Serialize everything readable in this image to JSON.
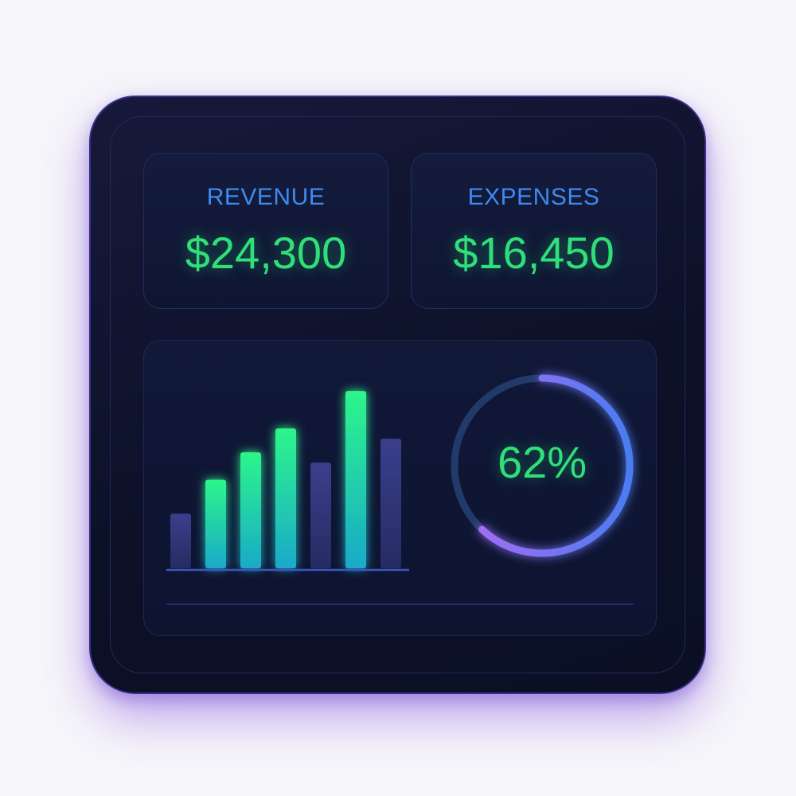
{
  "colors": {
    "label": "#3d8af0",
    "value": "#2fe07a",
    "ring_bg": "#243a6e",
    "ring_purple": "#a35cf0",
    "ring_blue": "#4a7cf0",
    "bar_dim": "#333a7a"
  },
  "revenue": {
    "label": "REVENUE",
    "value": "$24,300"
  },
  "expenses": {
    "label": "EXPENSES",
    "value": "$16,450"
  },
  "progress": {
    "label": "62%",
    "fraction": 0.62
  },
  "chart_data": {
    "type": "bar",
    "values": [
      16,
      26,
      34,
      41,
      31,
      52,
      38
    ],
    "highlight": [
      false,
      true,
      true,
      true,
      false,
      true,
      false
    ],
    "ylim": [
      0,
      56
    ]
  }
}
